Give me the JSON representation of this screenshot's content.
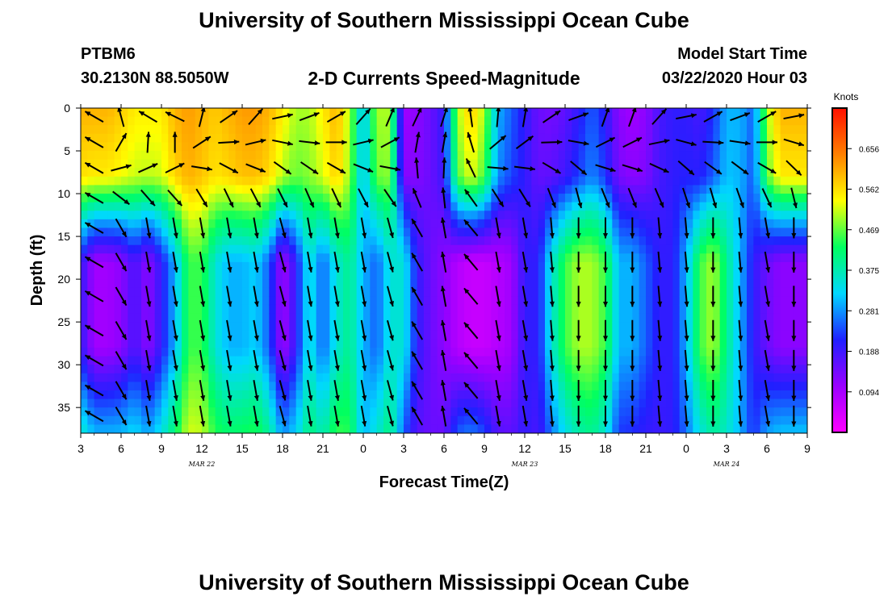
{
  "header": {
    "title": "University of Southern Mississippi Ocean Cube",
    "station": "PTBM6",
    "coordinates": "30.2130N 88.5050W",
    "subtitle": "2-D Currents Speed-Magnitude",
    "model_start_label": "Model Start Time",
    "model_start_value": "03/22/2020 Hour 03"
  },
  "footer": {
    "title": "University of Southern Mississippi Ocean Cube"
  },
  "chart_data": {
    "type": "heatmap",
    "title": "2-D Currents Speed-Magnitude",
    "xlabel": "Forecast Time(Z)",
    "ylabel": "Depth (ft)",
    "x_hours_range": [
      3,
      57
    ],
    "x_tick_labels": [
      "3",
      "6",
      "9",
      "12",
      "15",
      "18",
      "21",
      "0",
      "3",
      "6",
      "9",
      "12",
      "15",
      "18",
      "21",
      "0",
      "3",
      "6",
      "9"
    ],
    "date_labels": [
      {
        "label": "MAR 22",
        "at_tick": "12"
      },
      {
        "label": "MAR 23",
        "at_tick": "12"
      },
      {
        "label": "MAR 24",
        "at_tick": "3"
      }
    ],
    "ylim": [
      0,
      38
    ],
    "y_ticks": [
      0,
      5,
      10,
      15,
      20,
      25,
      30,
      35
    ],
    "y_inverted": true,
    "colorbar": {
      "unit_label": "Knots",
      "tick_labels": [
        "0.656",
        "0.562",
        "0.469",
        "0.375",
        "0.281",
        "0.188",
        "0.094"
      ],
      "range": [
        0,
        0.75
      ],
      "colors": [
        "#ff00ff",
        "#9a00ff",
        "#2020ff",
        "#00d8ff",
        "#00ff60",
        "#ffff00",
        "#ff8000",
        "#ff1000"
      ]
    },
    "surface_speed_by_hour": [
      0.6,
      0.6,
      0.6,
      0.58,
      0.55,
      0.55,
      0.55,
      0.6,
      0.62,
      0.6,
      0.58,
      0.6,
      0.62,
      0.62,
      0.6,
      0.55,
      0.5,
      0.5,
      0.55,
      0.6,
      0.5,
      0.3,
      0.5,
      0.5,
      0.1,
      0.12,
      0.15,
      0.2,
      0.5,
      0.58,
      0.5,
      0.3,
      0.25,
      0.2,
      0.15,
      0.14,
      0.16,
      0.2,
      0.25,
      0.2,
      0.12,
      0.1,
      0.12,
      0.18,
      0.2,
      0.2,
      0.18,
      0.22,
      0.3,
      0.3,
      0.25,
      0.5,
      0.6,
      0.6,
      0.6
    ],
    "deep_speed_by_hour": [
      0.2,
      0.1,
      0.1,
      0.12,
      0.18,
      0.12,
      0.2,
      0.3,
      0.45,
      0.45,
      0.35,
      0.3,
      0.3,
      0.32,
      0.25,
      0.1,
      0.2,
      0.35,
      0.25,
      0.35,
      0.4,
      0.3,
      0.25,
      0.35,
      0.35,
      0.2,
      0.15,
      0.12,
      0.08,
      0.06,
      0.06,
      0.08,
      0.1,
      0.2,
      0.2,
      0.35,
      0.45,
      0.5,
      0.5,
      0.45,
      0.3,
      0.3,
      0.25,
      0.2,
      0.2,
      0.3,
      0.45,
      0.5,
      0.4,
      0.3,
      0.2,
      0.15,
      0.12,
      0.12,
      0.12
    ],
    "speed_depth_profile": [
      {
        "depth": 0,
        "factor": 0
      },
      {
        "depth": 8,
        "factor": 0.1
      },
      {
        "depth": 13,
        "factor": 0.6
      },
      {
        "depth": 18,
        "factor": 1
      },
      {
        "depth": 28,
        "factor": 1
      },
      {
        "depth": 34,
        "factor": 0.75
      },
      {
        "depth": 38,
        "factor": 0.6
      }
    ],
    "arrow_depths": [
      1,
      4,
      7,
      10.5,
      14,
      18,
      22,
      26,
      29.5,
      33,
      36
    ],
    "arrow_hours": [
      4,
      6,
      8,
      10,
      12,
      14,
      16,
      18,
      20,
      22,
      24,
      26,
      28,
      30,
      32,
      34,
      36,
      38,
      40,
      42,
      44,
      46,
      48,
      50,
      52,
      54,
      56
    ],
    "arrow_direction_deg_surface": [
      -150,
      -120,
      -170,
      -175,
      -90,
      -45,
      -60,
      -20,
      -30,
      -40,
      -60,
      -80,
      -60,
      -70,
      -95,
      -100,
      -95,
      -45,
      -30,
      -85,
      -85,
      -60,
      -20,
      -40,
      -30,
      -40,
      -20
    ],
    "arrow_direction_deg_deep": [
      -150,
      60,
      80,
      80,
      80,
      80,
      80,
      75,
      80,
      80,
      80,
      75,
      -120,
      -100,
      -130,
      80,
      80,
      85,
      90,
      90,
      90,
      85,
      85,
      90,
      85,
      80,
      90
    ]
  }
}
